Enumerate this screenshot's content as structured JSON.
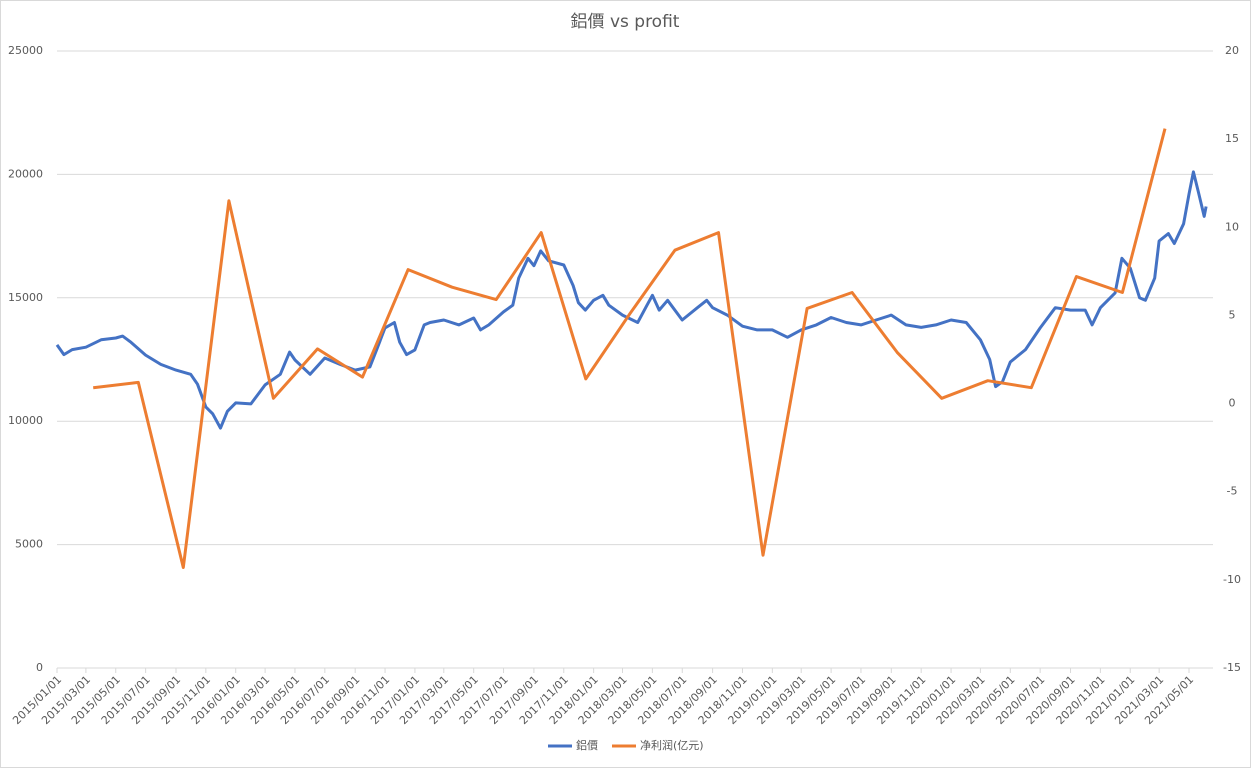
{
  "chart_data": {
    "type": "line",
    "title": "鋁價 vs profit",
    "xlim": [
      "2015/01/01",
      "2021/06/19"
    ],
    "xticks": [
      "2015/01/01",
      "2015/03/01",
      "2015/05/01",
      "2015/07/01",
      "2015/09/01",
      "2015/11/01",
      "2016/01/01",
      "2016/03/01",
      "2016/05/01",
      "2016/07/01",
      "2016/09/01",
      "2016/11/01",
      "2017/01/01",
      "2017/03/01",
      "2017/05/01",
      "2017/07/01",
      "2017/09/01",
      "2017/11/01",
      "2018/01/01",
      "2018/03/01",
      "2018/05/01",
      "2018/07/01",
      "2018/09/01",
      "2018/11/01",
      "2019/01/01",
      "2019/03/01",
      "2019/05/01",
      "2019/07/01",
      "2019/09/01",
      "2019/11/01",
      "2020/01/01",
      "2020/03/01",
      "2020/05/01",
      "2020/07/01",
      "2020/09/01",
      "2020/11/01",
      "2021/01/01",
      "2021/03/01",
      "2021/05/01"
    ],
    "ylim": [
      0,
      25000
    ],
    "yticks": [
      0,
      5000,
      10000,
      15000,
      20000,
      25000
    ],
    "y2lim": [
      -15,
      20
    ],
    "y2ticks": [
      -15,
      -10,
      -5,
      0,
      5,
      10,
      15,
      20
    ],
    "grid": true,
    "legend": "bottom",
    "series": [
      {
        "name": "鋁價",
        "color": "#4472c4",
        "x": [
          "2015/01/01",
          "2015/01/15",
          "2015/02/01",
          "2015/03/01",
          "2015/04/01",
          "2015/05/01",
          "2015/05/15",
          "2015/06/01",
          "2015/07/01",
          "2015/08/01",
          "2015/09/01",
          "2015/10/01",
          "2015/10/15",
          "2015/11/01",
          "2015/11/15",
          "2015/12/01",
          "2015/12/15",
          "2016/01/01",
          "2016/02/01",
          "2016/03/01",
          "2016/04/01",
          "2016/04/20",
          "2016/05/01",
          "2016/06/01",
          "2016/07/01",
          "2016/08/01",
          "2016/09/01",
          "2016/10/01",
          "2016/10/15",
          "2016/11/01",
          "2016/11/20",
          "2016/12/01",
          "2016/12/15",
          "2017/01/01",
          "2017/01/20",
          "2017/02/01",
          "2017/03/01",
          "2017/04/01",
          "2017/05/01",
          "2017/05/15",
          "2017/06/01",
          "2017/07/01",
          "2017/07/20",
          "2017/08/01",
          "2017/08/20",
          "2017/09/01",
          "2017/09/15",
          "2017/10/01",
          "2017/11/01",
          "2017/11/20",
          "2017/12/01",
          "2017/12/15",
          "2018/01/01",
          "2018/01/20",
          "2018/02/01",
          "2018/03/01",
          "2018/04/01",
          "2018/04/20",
          "2018/05/01",
          "2018/05/15",
          "2018/06/01",
          "2018/07/01",
          "2018/08/01",
          "2018/08/20",
          "2018/09/01",
          "2018/10/01",
          "2018/11/01",
          "2018/12/01",
          "2019/01/01",
          "2019/02/01",
          "2019/03/01",
          "2019/04/01",
          "2019/05/01",
          "2019/06/01",
          "2019/07/01",
          "2019/08/01",
          "2019/09/01",
          "2019/10/01",
          "2019/11/01",
          "2019/12/01",
          "2020/01/01",
          "2020/02/01",
          "2020/03/01",
          "2020/03/20",
          "2020/04/01",
          "2020/04/15",
          "2020/05/01",
          "2020/06/01",
          "2020/07/01",
          "2020/08/01",
          "2020/09/01",
          "2020/10/01",
          "2020/10/15",
          "2020/11/01",
          "2020/12/01",
          "2020/12/15",
          "2021/01/01",
          "2021/01/20",
          "2021/02/01",
          "2021/02/20",
          "2021/03/01",
          "2021/03/20",
          "2021/04/01",
          "2021/04/20",
          "2021/05/01",
          "2021/05/10",
          "2021/05/20",
          "2021/06/01",
          "2021/06/05"
        ],
        "values": [
          13090,
          12700,
          12900,
          13000,
          13300,
          13370,
          13450,
          13200,
          12680,
          12300,
          12070,
          11900,
          11500,
          10580,
          10300,
          9720,
          10400,
          10740,
          10700,
          11470,
          11900,
          12800,
          12480,
          11900,
          12560,
          12300,
          12070,
          12200,
          12900,
          13780,
          14000,
          13200,
          12700,
          12890,
          13900,
          14000,
          14100,
          13900,
          14180,
          13700,
          13900,
          14430,
          14700,
          15800,
          16600,
          16300,
          16900,
          16500,
          16330,
          15500,
          14800,
          14500,
          14900,
          15100,
          14700,
          14300,
          14000,
          14700,
          15100,
          14500,
          14900,
          14100,
          14600,
          14900,
          14600,
          14300,
          13850,
          13700,
          13700,
          13400,
          13700,
          13900,
          14200,
          14000,
          13900,
          14100,
          14300,
          13900,
          13800,
          13900,
          14100,
          14000,
          13300,
          12500,
          11400,
          11600,
          12400,
          12900,
          13780,
          14600,
          14500,
          14500,
          13900,
          14600,
          15200,
          16600,
          16200,
          15000,
          14900,
          15800,
          17300,
          17600,
          17200,
          18000,
          19200,
          20100,
          19300,
          18300,
          18700
        ]
      },
      {
        "name": "净利润(亿元)",
        "color": "#ed7d31",
        "axis": "y2",
        "x": [
          "2015/03/16",
          "2015/06/16",
          "2015/09/16",
          "2015/12/18",
          "2016/03/18",
          "2016/06/16",
          "2016/09/16",
          "2016/12/18",
          "2017/03/18",
          "2017/06/16",
          "2017/09/16",
          "2017/12/16",
          "2018/03/16",
          "2018/06/16",
          "2018/09/13",
          "2018/12/13",
          "2019/03/13",
          "2019/06/13",
          "2019/09/13",
          "2019/12/13",
          "2020/03/16",
          "2020/06/13",
          "2020/09/13",
          "2020/12/16",
          "2021/03/13"
        ],
        "values": [
          0.9,
          1.2,
          -9.3,
          11.5,
          0.3,
          3.1,
          1.5,
          7.6,
          6.6,
          5.9,
          9.7,
          1.4,
          5.1,
          8.7,
          9.7,
          -8.6,
          5.4,
          6.3,
          2.9,
          0.3,
          1.3,
          0.9,
          7.2,
          6.3,
          15.6
        ]
      }
    ]
  }
}
